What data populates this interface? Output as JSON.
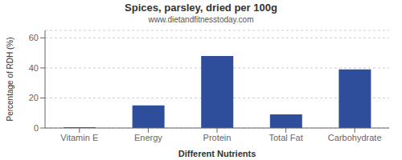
{
  "chart_data": {
    "type": "bar",
    "title": "Spices, parsley, dried per 100g",
    "subtitle": "www.dietandfitnesstoday.com",
    "xlabel": "Different Nutrients",
    "ylabel": "Percentage of RDH (%)",
    "categories": [
      "Vitamin E",
      "Energy",
      "Protein",
      "Total Fat",
      "Carbohydrate"
    ],
    "values": [
      0.5,
      15,
      48,
      9,
      39
    ],
    "color": "#2e4d9b",
    "ylim": [
      0,
      65
    ],
    "yticks": [
      0,
      20,
      40,
      60
    ],
    "grid": true
  }
}
